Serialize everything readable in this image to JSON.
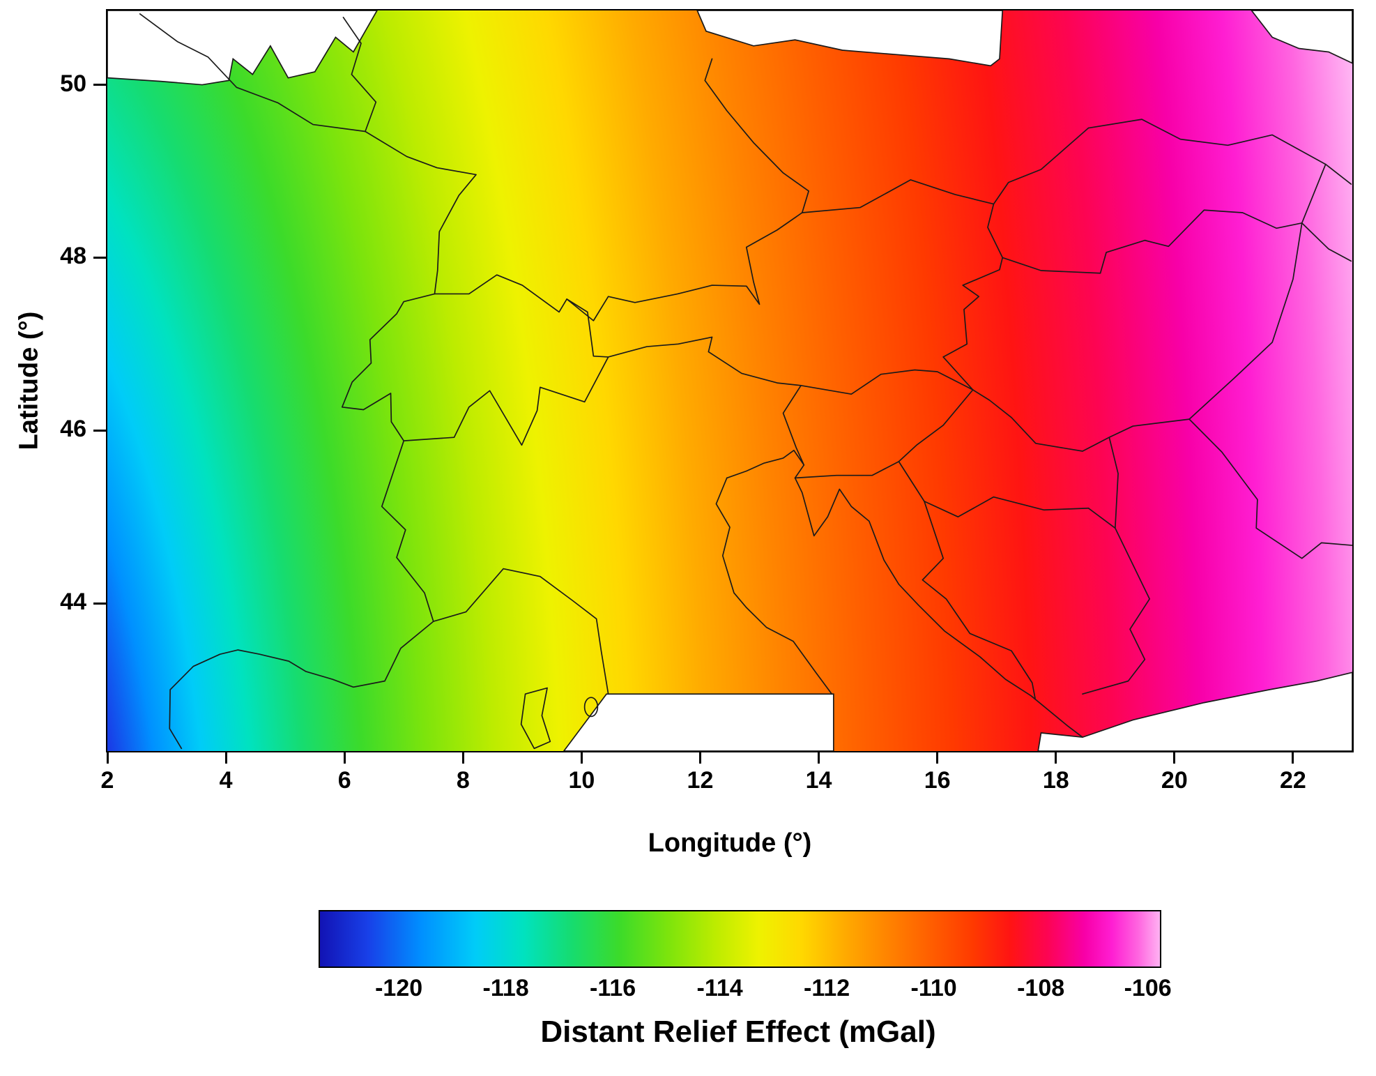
{
  "chart_data": {
    "type": "heatmap",
    "title": "",
    "xlabel": "Longitude (°)",
    "ylabel": "Latitude (°)",
    "xlim": [
      2,
      23
    ],
    "ylim": [
      42.29,
      50.86
    ],
    "x_ticks": [
      2,
      4,
      6,
      8,
      10,
      12,
      14,
      16,
      18,
      20,
      22
    ],
    "y_ticks": [
      50,
      48,
      46,
      44
    ],
    "grid": false,
    "legend_position": "bottom-colorbar",
    "gradient_summary": "Smooth rainbow field increasing from about -121 mGal (deep blue, southwest corner) to about -106 mGal (pale pink, eastern edge); iso-value bands curve as arcs around the southwest corner; national borders and coastlines of the Alpine region are overlaid in black; white areas are outside the data coverage.",
    "colorbar": {
      "label": "Distant Relief Effect (mGal)",
      "ticks": [
        -120,
        -118,
        -116,
        -114,
        -112,
        -110,
        -108,
        -106
      ],
      "min": -121.5,
      "max": -105.8,
      "colormap": [
        [
          -121.5,
          "#1213b4"
        ],
        [
          -120.6,
          "#1840e8"
        ],
        [
          -119.6,
          "#0090ff"
        ],
        [
          -118.6,
          "#00ccf8"
        ],
        [
          -117.7,
          "#00e2c0"
        ],
        [
          -116.8,
          "#16dc70"
        ],
        [
          -115.9,
          "#3cdb2a"
        ],
        [
          -115.0,
          "#7ce40c"
        ],
        [
          -114.1,
          "#bdec00"
        ],
        [
          -113.3,
          "#eef200"
        ],
        [
          -112.5,
          "#ffd800"
        ],
        [
          -111.7,
          "#ffab00"
        ],
        [
          -110.9,
          "#ff8400"
        ],
        [
          -110.1,
          "#ff5f00"
        ],
        [
          -109.3,
          "#ff3a00"
        ],
        [
          -108.6,
          "#ff1413"
        ],
        [
          -107.9,
          "#fd0453"
        ],
        [
          -107.2,
          "#f800a8"
        ],
        [
          -106.7,
          "#ff1ed2"
        ],
        [
          -106.2,
          "#ff66e0"
        ],
        [
          -105.8,
          "#ffb2f2"
        ]
      ]
    },
    "field_samples": {
      "lons": [
        2,
        4,
        6,
        8,
        10,
        12,
        14,
        16,
        18,
        20,
        22
      ],
      "lats": [
        50,
        48,
        46,
        44
      ],
      "values_mgal": [
        [
          -117.1,
          -116.0,
          -114.7,
          -113.5,
          -112.3,
          -111.1,
          -110.1,
          -109.0,
          -108.0,
          -107.1,
          -106.2
        ],
        [
          -118.0,
          -116.7,
          -115.2,
          -113.8,
          -112.6,
          -111.4,
          -110.2,
          -109.2,
          -108.2,
          -107.2,
          -106.3
        ],
        [
          -119.0,
          -117.3,
          -115.6,
          -114.1,
          -112.8,
          -111.5,
          -110.4,
          -109.3,
          -108.3,
          -107.3,
          -106.4
        ],
        [
          -120.0,
          -117.8,
          -116.0,
          -114.4,
          -113.0,
          -111.7,
          -110.5,
          -109.4,
          -108.4,
          -107.4,
          -106.5
        ]
      ]
    }
  }
}
